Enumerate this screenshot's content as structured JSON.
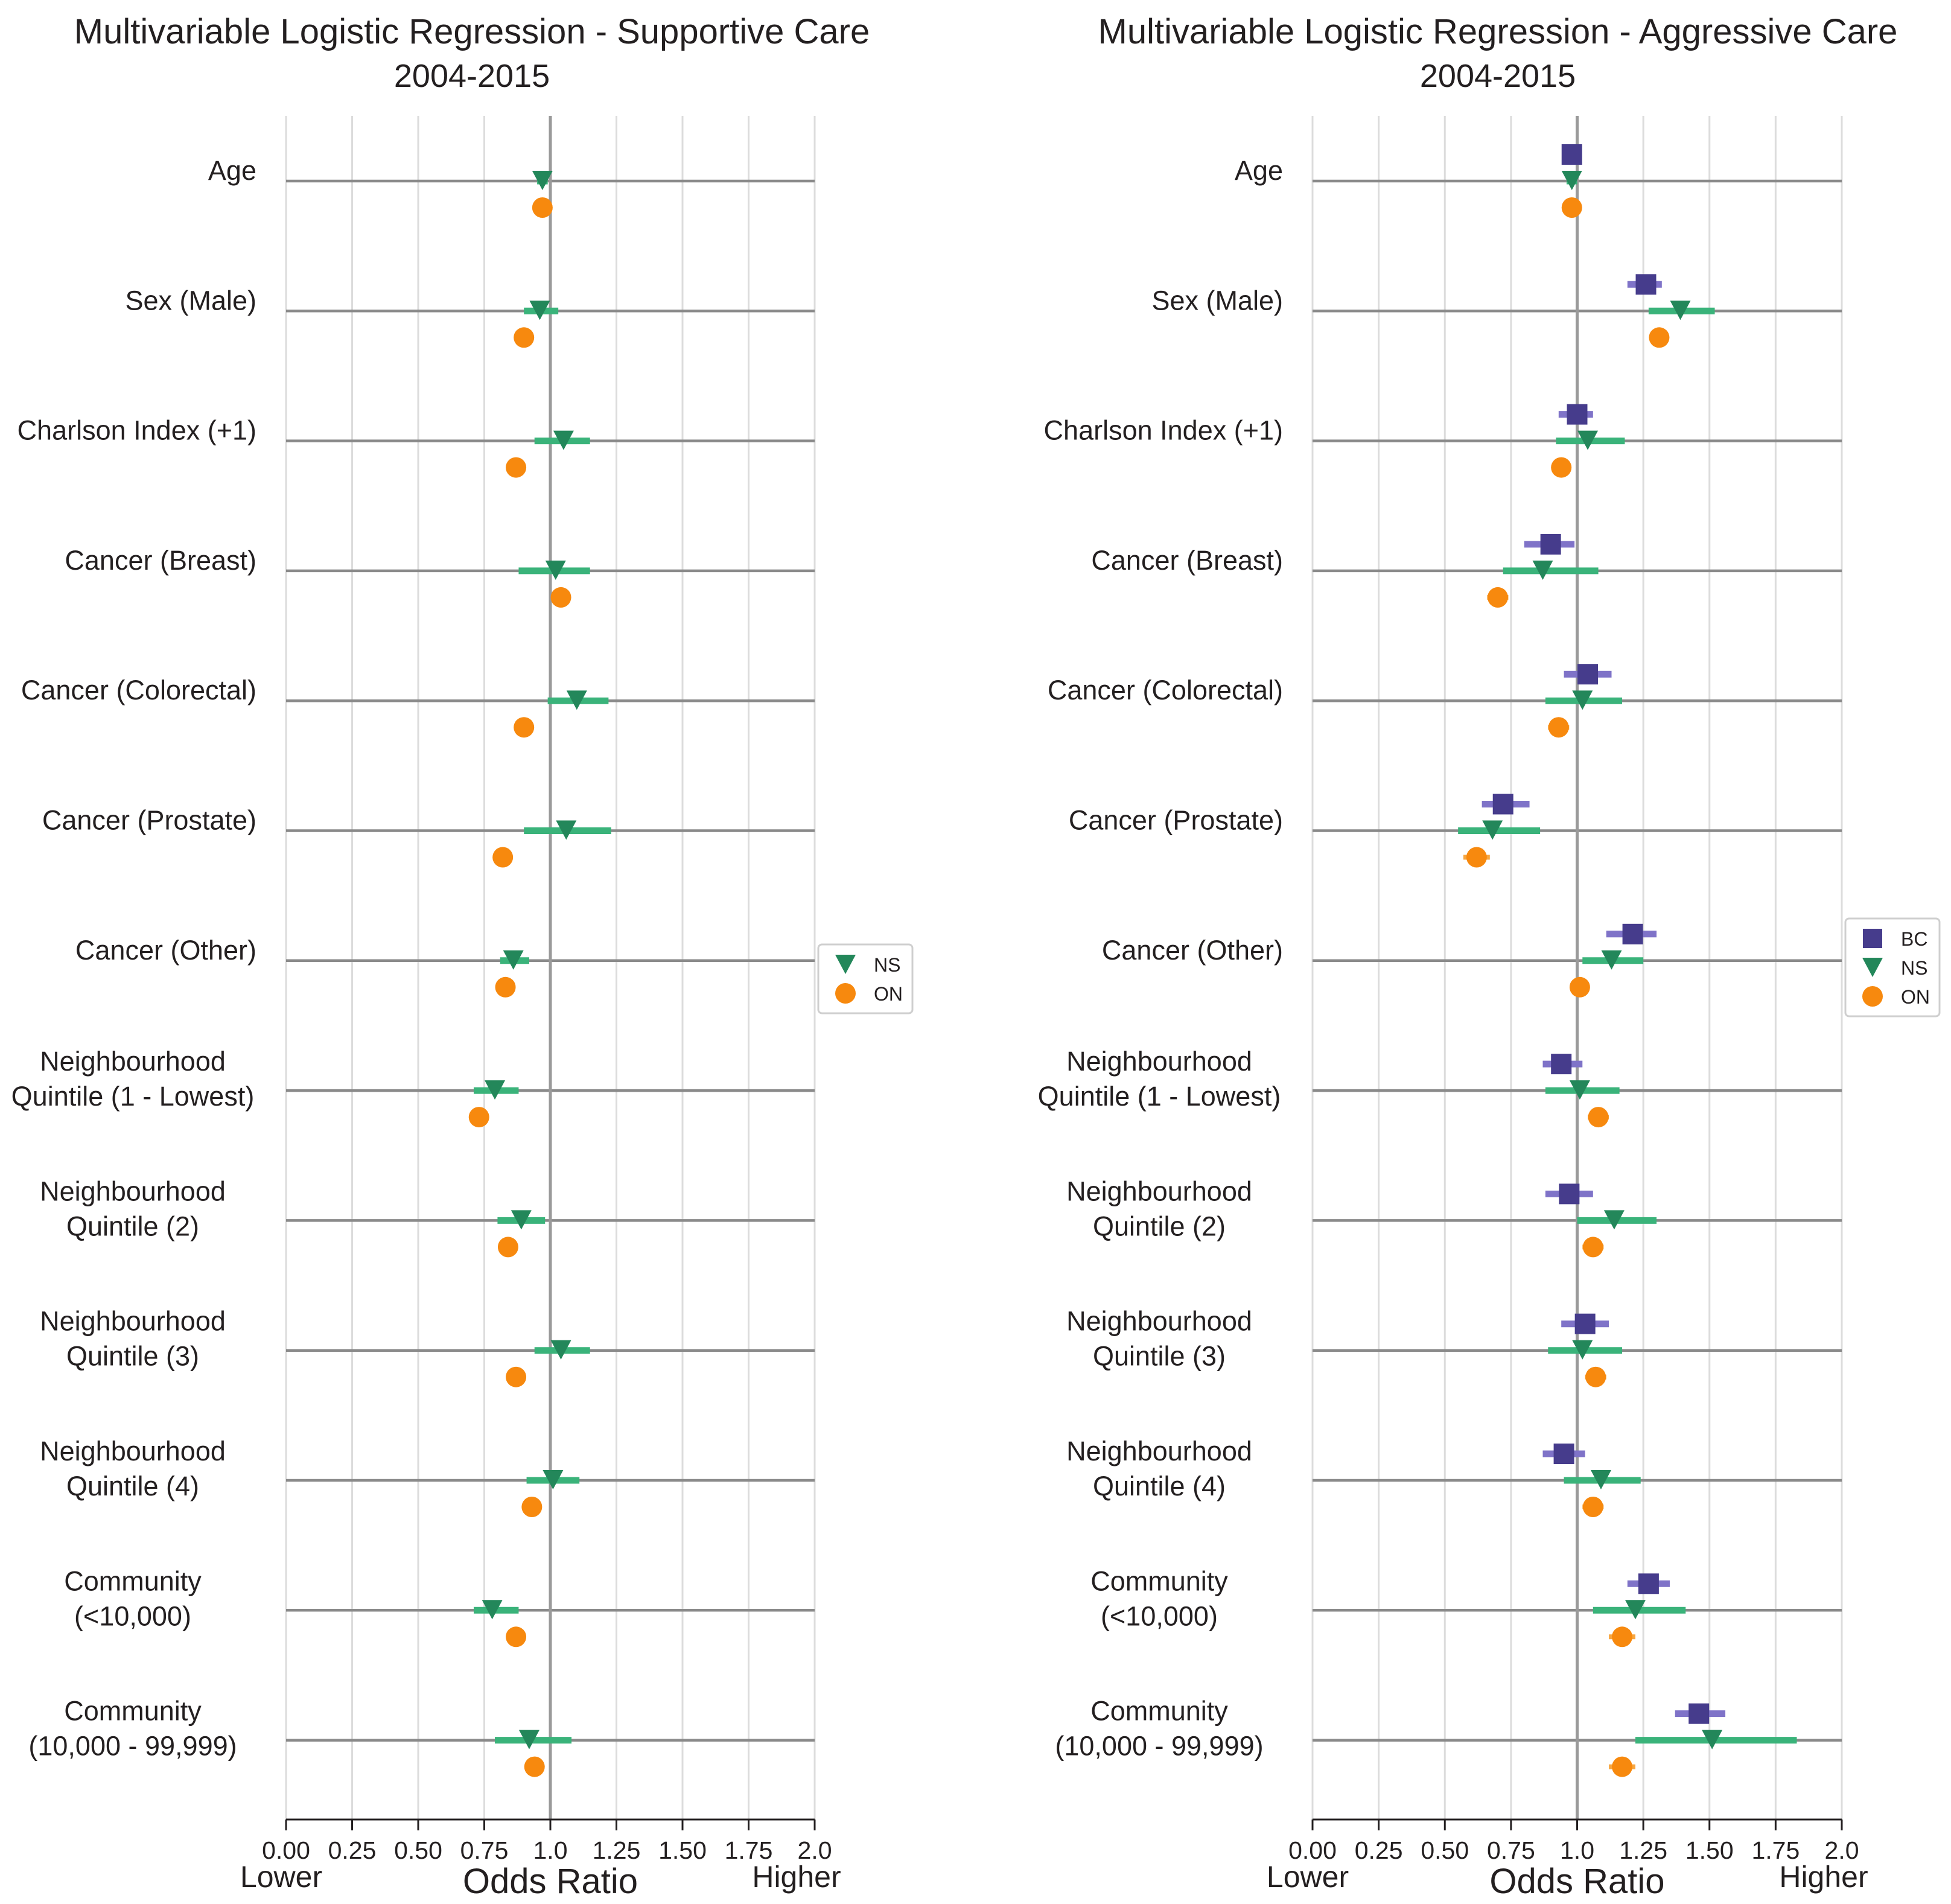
{
  "colors": {
    "BC": "#463c8c",
    "NS": "#23875a",
    "ON": "#f7890e",
    "NS_ci": "#3ab37a",
    "BC_ci": "#7f73c8",
    "ON_ci": "#f7a640"
  },
  "common": {
    "xlabel": "Odds Ratio",
    "lower_label": "Lower",
    "higher_label": "Higher"
  },
  "chart_data": [
    {
      "type": "scatter",
      "title": "Multivariable Logistic Regression - Supportive Care",
      "subtitle": "2004-2015",
      "xlabel": "Odds Ratio",
      "xlim": [
        0,
        2.0
      ],
      "xticks": [
        "0.00",
        "0.25",
        "0.50",
        "0.75",
        "1.0",
        "1.25",
        "1.50",
        "1.75",
        "2.0"
      ],
      "reference_line": 1.0,
      "legend": {
        "position": "right",
        "entries": [
          "NS",
          "ON"
        ]
      },
      "categories": [
        [
          "Age"
        ],
        [
          "Sex (Male)"
        ],
        [
          "Charlson Index (+1)"
        ],
        [
          "Cancer (Breast)"
        ],
        [
          "Cancer (Colorectal)"
        ],
        [
          "Cancer (Prostate)"
        ],
        [
          "Cancer (Other)"
        ],
        [
          "Neighbourhood",
          "Quintile (1 - Lowest)"
        ],
        [
          "Neighbourhood",
          "Quintile (2)"
        ],
        [
          "Neighbourhood",
          "Quintile (3)"
        ],
        [
          "Neighbourhood",
          "Quintile (4)"
        ],
        [
          "Community",
          "(<10,000)"
        ],
        [
          "Community",
          "(10,000 - 99,999)"
        ]
      ],
      "series": [
        {
          "name": "NS",
          "marker": "triangle",
          "values": [
            0.97,
            0.96,
            1.05,
            1.02,
            1.1,
            1.06,
            0.86,
            0.79,
            0.89,
            1.04,
            1.01,
            0.78,
            0.92
          ],
          "ci_low": [
            0.95,
            0.9,
            0.94,
            0.88,
            0.99,
            0.9,
            0.81,
            0.71,
            0.8,
            0.94,
            0.91,
            0.71,
            0.79
          ],
          "ci_high": [
            0.99,
            1.03,
            1.15,
            1.15,
            1.22,
            1.23,
            0.92,
            0.88,
            0.98,
            1.15,
            1.11,
            0.88,
            1.08
          ]
        },
        {
          "name": "ON",
          "marker": "circle",
          "values": [
            0.97,
            0.9,
            0.87,
            1.04,
            0.9,
            0.82,
            0.83,
            0.73,
            0.84,
            0.87,
            0.93,
            0.87,
            0.94
          ],
          "ci_low": [
            0.96,
            0.89,
            0.86,
            1.02,
            0.89,
            0.81,
            0.82,
            0.72,
            0.83,
            0.86,
            0.92,
            0.86,
            0.93
          ],
          "ci_high": [
            0.98,
            0.91,
            0.88,
            1.06,
            0.91,
            0.83,
            0.84,
            0.74,
            0.85,
            0.88,
            0.94,
            0.88,
            0.95
          ]
        }
      ]
    },
    {
      "type": "scatter",
      "title": "Multivariable Logistic Regression - Aggressive Care",
      "subtitle": "2004-2015",
      "xlabel": "Odds Ratio",
      "xlim": [
        0,
        2.0
      ],
      "xticks": [
        "0.00",
        "0.25",
        "0.50",
        "0.75",
        "1.0",
        "1.25",
        "1.50",
        "1.75",
        "2.0"
      ],
      "reference_line": 1.0,
      "legend": {
        "position": "right",
        "entries": [
          "BC",
          "NS",
          "ON"
        ]
      },
      "categories": [
        [
          "Age"
        ],
        [
          "Sex (Male)"
        ],
        [
          "Charlson Index (+1)"
        ],
        [
          "Cancer (Breast)"
        ],
        [
          "Cancer (Colorectal)"
        ],
        [
          "Cancer (Prostate)"
        ],
        [
          "Cancer (Other)"
        ],
        [
          "Neighbourhood",
          "Quintile (1 - Lowest)"
        ],
        [
          "Neighbourhood",
          "Quintile (2)"
        ],
        [
          "Neighbourhood",
          "Quintile (3)"
        ],
        [
          "Neighbourhood",
          "Quintile (4)"
        ],
        [
          "Community",
          "(<10,000)"
        ],
        [
          "Community",
          "(10,000 - 99,999)"
        ]
      ],
      "series": [
        {
          "name": "BC",
          "marker": "square",
          "values": [
            0.98,
            1.26,
            1.0,
            0.9,
            1.04,
            0.72,
            1.21,
            0.94,
            0.97,
            1.03,
            0.95,
            1.27,
            1.46
          ],
          "ci_low": [
            0.97,
            1.19,
            0.93,
            0.8,
            0.95,
            0.64,
            1.11,
            0.87,
            0.88,
            0.94,
            0.87,
            1.19,
            1.37
          ],
          "ci_high": [
            0.99,
            1.32,
            1.06,
            0.99,
            1.13,
            0.82,
            1.3,
            1.02,
            1.06,
            1.12,
            1.03,
            1.35,
            1.56
          ]
        },
        {
          "name": "NS",
          "marker": "triangle",
          "values": [
            0.98,
            1.39,
            1.04,
            0.87,
            1.02,
            0.68,
            1.13,
            1.01,
            1.14,
            1.02,
            1.09,
            1.22,
            1.51
          ],
          "ci_low": [
            0.96,
            1.27,
            0.92,
            0.72,
            0.88,
            0.55,
            1.02,
            0.88,
            1.0,
            0.89,
            0.95,
            1.06,
            1.22
          ],
          "ci_high": [
            1.0,
            1.52,
            1.18,
            1.08,
            1.17,
            0.86,
            1.25,
            1.16,
            1.3,
            1.17,
            1.24,
            1.41,
            1.83
          ]
        },
        {
          "name": "ON",
          "marker": "circle",
          "values": [
            0.98,
            1.31,
            0.94,
            0.7,
            0.93,
            0.62,
            1.01,
            1.08,
            1.06,
            1.07,
            1.06,
            1.17,
            1.17
          ],
          "ci_low": [
            0.96,
            1.29,
            0.91,
            0.66,
            0.89,
            0.57,
            1.0,
            1.04,
            1.02,
            1.03,
            1.02,
            1.12,
            1.12
          ],
          "ci_high": [
            1.0,
            1.33,
            0.97,
            0.74,
            0.97,
            0.67,
            1.02,
            1.12,
            1.1,
            1.11,
            1.1,
            1.22,
            1.22
          ]
        }
      ]
    }
  ]
}
